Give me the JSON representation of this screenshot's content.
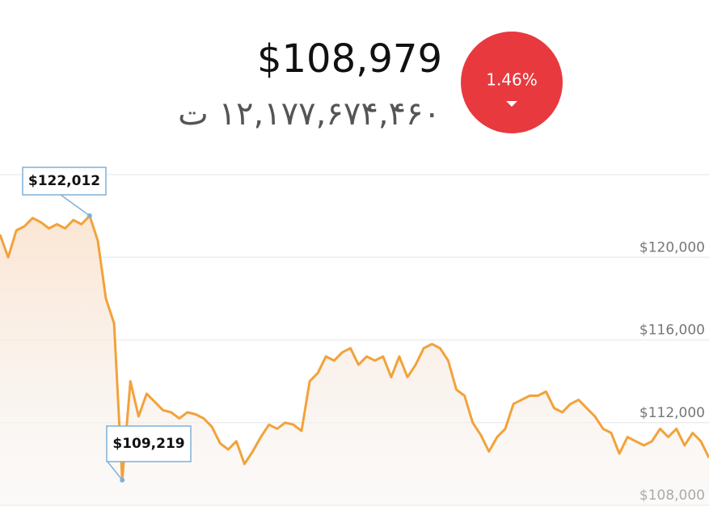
{
  "header": {
    "price": "$108,979",
    "toman": "۱۲,۱۷۷,۶۷۴,۴۶۰ ت",
    "change": "1.46%"
  },
  "chart_data": {
    "type": "line",
    "color": "#f2a23a",
    "grid": true,
    "ylim": [
      108000,
      124000
    ],
    "yticks": [
      {
        "value": 108000,
        "label": "$108,000"
      },
      {
        "value": 112000,
        "label": "$112,000"
      },
      {
        "value": 116000,
        "label": "$116,000"
      },
      {
        "value": 120000,
        "label": "$120,000"
      }
    ],
    "values": [
      121100,
      120000,
      121300,
      121500,
      121900,
      121700,
      121400,
      121600,
      121400,
      121800,
      121600,
      122012,
      120800,
      118000,
      116800,
      109219,
      114000,
      112300,
      113400,
      113000,
      112600,
      112500,
      112200,
      112500,
      112400,
      112200,
      111800,
      111000,
      110700,
      111100,
      110000,
      110600,
      111300,
      111900,
      111700,
      112000,
      111900,
      111600,
      114000,
      114400,
      115200,
      115000,
      115400,
      115600,
      114800,
      115200,
      115000,
      115200,
      114200,
      115200,
      114200,
      114800,
      115600,
      115800,
      115600,
      115000,
      113600,
      113300,
      112000,
      111400,
      110600,
      111300,
      111700,
      112900,
      113100,
      113300,
      113300,
      113500,
      112700,
      112500,
      112900,
      113100,
      112700,
      112300,
      111700,
      111500,
      110500,
      111300,
      111100,
      110900,
      111100,
      111700,
      111300,
      111700,
      110900,
      111500,
      111100,
      110300
    ],
    "annotations": [
      {
        "text": "$122,012",
        "value": 122012
      },
      {
        "text": "$109,219",
        "value": 109219
      }
    ]
  }
}
